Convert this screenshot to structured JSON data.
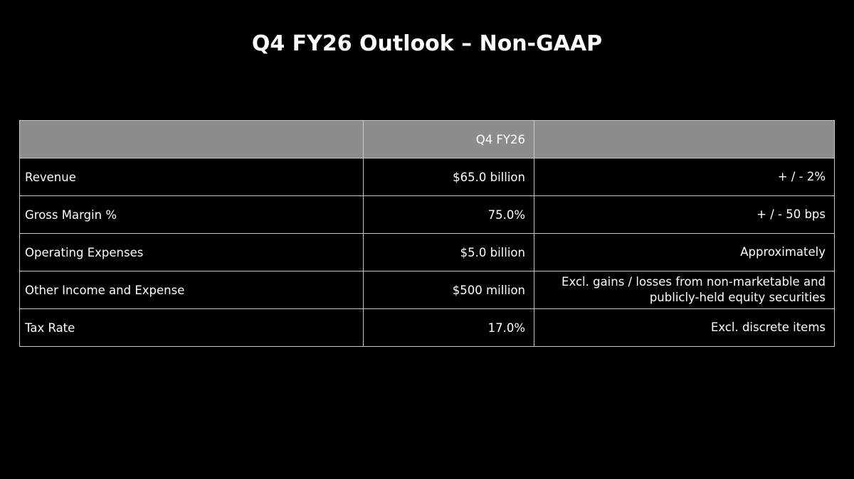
{
  "title": "Q4 FY26 Outlook – Non-GAAP",
  "table": {
    "header": [
      "",
      "Q4 FY26",
      ""
    ],
    "rows": [
      {
        "label": "Revenue",
        "value": "$65.0 billion",
        "note": "+ / - 2%"
      },
      {
        "label": "Gross Margin %",
        "value": "75.0%",
        "note": "+ / - 50 bps"
      },
      {
        "label": "Operating Expenses",
        "value": "$5.0 billion",
        "note": "Approximately"
      },
      {
        "label": "Other Income and Expense",
        "value": "$500 million",
        "note": "Excl. gains / losses from non-marketable and publicly-held equity securities"
      },
      {
        "label": "Tax Rate",
        "value": "17.0%",
        "note": "Excl. discrete items"
      }
    ]
  }
}
